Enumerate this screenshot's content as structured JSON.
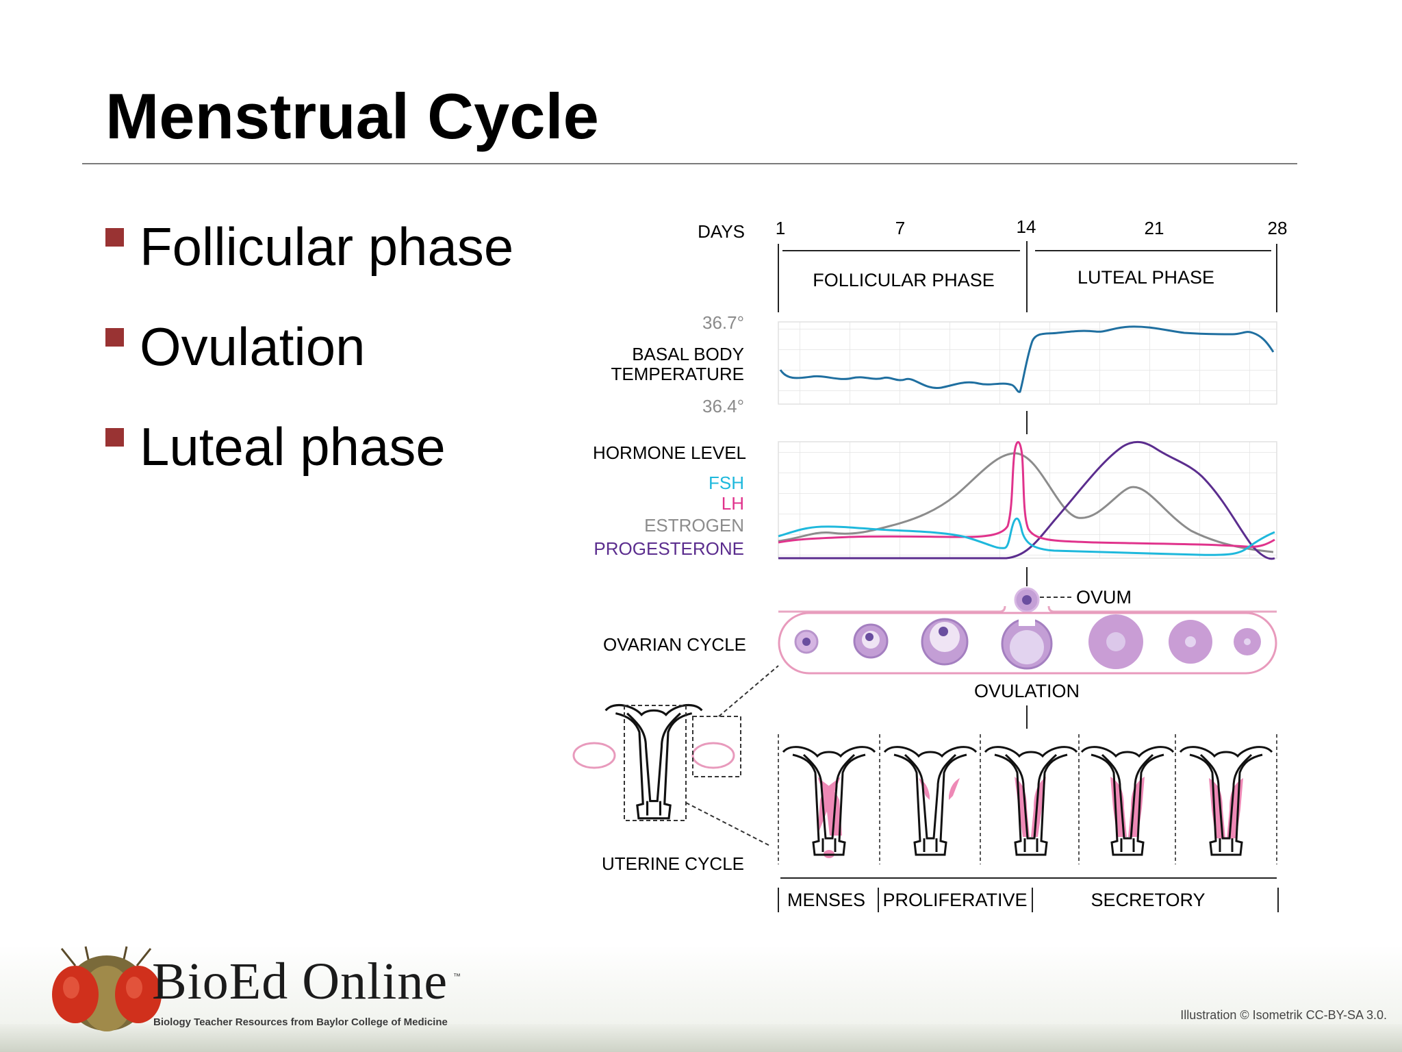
{
  "slide": {
    "title": "Menstrual Cycle",
    "bullets": [
      "Follicular phase",
      "Ovulation",
      "Luteal phase"
    ],
    "credit": "Illustration © Isometrik CC-BY-SA 3.0."
  },
  "logo": {
    "name": "BioEd Online",
    "trademark": "™",
    "tagline": "Biology Teacher Resources from Baylor College of Medicine"
  },
  "diagram": {
    "days_label": "DAYS",
    "days": [
      "1",
      "7",
      "14",
      "21",
      "28"
    ],
    "phases": {
      "follicular": "FOLLICULAR PHASE",
      "luteal": "LUTEAL PHASE"
    },
    "temperature": {
      "label_line1": "BASAL BODY",
      "label_line2": "TEMPERATURE",
      "max": "36.7°",
      "min": "36.4°"
    },
    "hormones": {
      "label": "HORMONE LEVEL",
      "fsh": "FSH",
      "lh": "LH",
      "estrogen": "ESTROGEN",
      "progesterone": "PROGESTERONE"
    },
    "colors": {
      "fsh": "#1eb8dc",
      "lh": "#e0338c",
      "estrogen": "#8c8c8c",
      "progesterone": "#5b2d8e",
      "temperature": "#1f6fa0",
      "ovary": "#c08fd0",
      "endometrium": "#ee89b6"
    },
    "ovum_label": "OVUM",
    "ovarian_cycle": "OVARIAN CYCLE",
    "ovulation": "OVULATION",
    "uterine_cycle": "UTERINE CYCLE",
    "uterine_phases": {
      "menses": "MENSES",
      "proliferative": "PROLIFERATIVE",
      "secretory": "SECRETORY"
    }
  }
}
